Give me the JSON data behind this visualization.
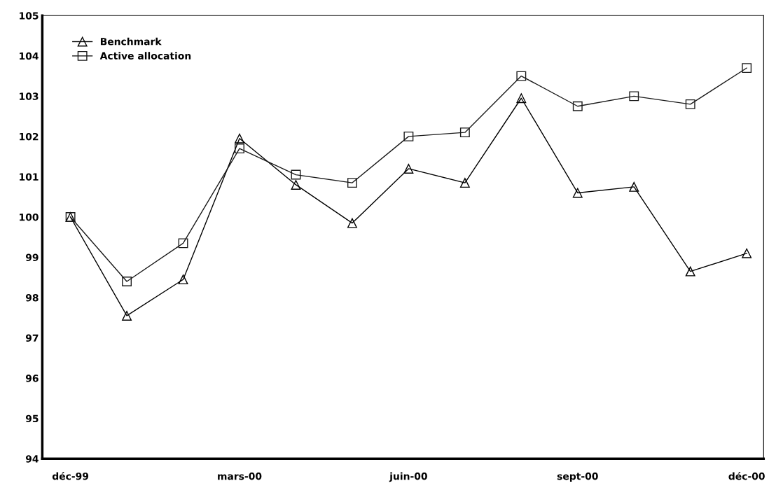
{
  "chart_data": {
    "type": "line",
    "categories": [
      "déc-99",
      null,
      null,
      "mars-00",
      null,
      null,
      "juin-00",
      null,
      null,
      "sept-00",
      null,
      null,
      "déc-00"
    ],
    "series": [
      {
        "name": "Benchmark",
        "color": "#000000",
        "marker": "triangle",
        "values": [
          100,
          97.55,
          98.45,
          101.95,
          100.8,
          99.85,
          101.2,
          100.85,
          102.95,
          100.6,
          100.75,
          98.65,
          99.1
        ]
      },
      {
        "name": "Active allocation",
        "color": "#1a1a1a",
        "marker": "square",
        "values": [
          100,
          98.4,
          99.35,
          101.7,
          101.05,
          100.85,
          102.0,
          102.1,
          103.5,
          102.75,
          103.0,
          102.8,
          103.7
        ]
      }
    ],
    "ylim": [
      94,
      105
    ],
    "yticks": [
      94,
      95,
      96,
      97,
      98,
      99,
      100,
      101,
      102,
      103,
      104,
      105
    ],
    "grid": false,
    "legend": "top left",
    "line_style": "solid"
  }
}
